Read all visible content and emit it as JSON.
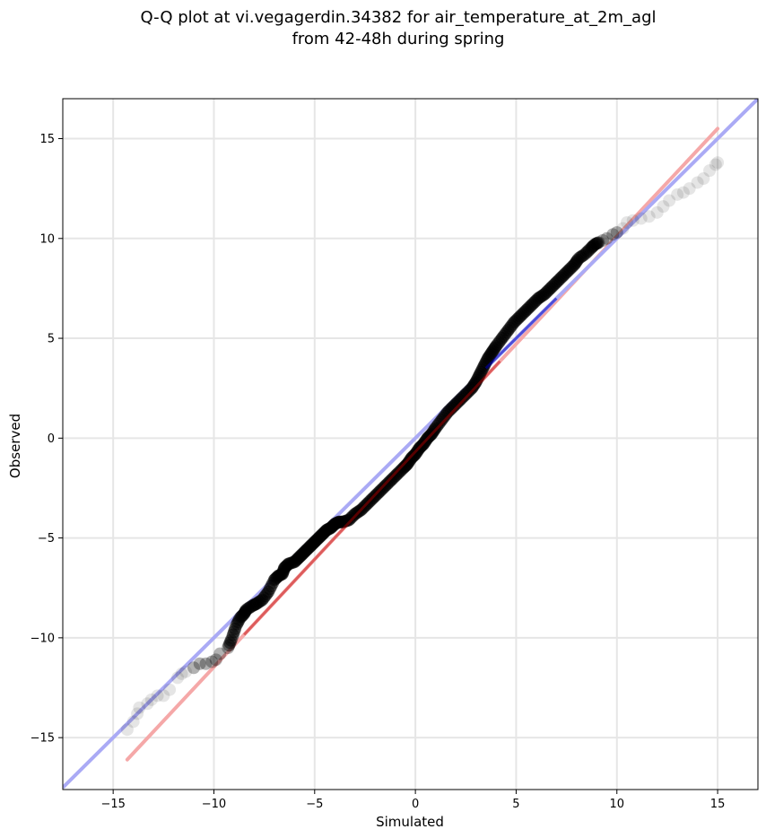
{
  "chart_data": {
    "type": "scatter",
    "title_lines": [
      "Q-Q plot at vi.vegagerdin.34382 for air_temperature_at_2m_agl",
      "from 42-48h during spring"
    ],
    "xlabel": "Simulated",
    "ylabel": "Observed",
    "xlim": [
      -17.5,
      17.0
    ],
    "ylim": [
      -17.6,
      17.0
    ],
    "xticks": [
      -15,
      -10,
      -5,
      0,
      5,
      10,
      15
    ],
    "yticks": [
      -15,
      -10,
      -5,
      0,
      5,
      10,
      15
    ],
    "xtick_labels": [
      "−15",
      "−10",
      "−5",
      "0",
      "5",
      "10",
      "15"
    ],
    "ytick_labels": [
      "−15",
      "−10",
      "−5",
      "0",
      "5",
      "10",
      "15"
    ],
    "grid": true,
    "colors": {
      "points": "#000000",
      "identity_line": "#aaaaf5",
      "fit_line": "#f5a8a8",
      "fit_inner": "#c00000",
      "inner_identity": "#0000c0",
      "grid": "#e6e6e6"
    },
    "identity_line": {
      "x": [
        -17.5,
        17.0
      ],
      "y": [
        -17.5,
        17.0
      ]
    },
    "fit_line": {
      "x": [
        -14.3,
        15.0
      ],
      "y": [
        -16.1,
        15.5
      ]
    },
    "series": [
      {
        "type": "scatter",
        "x": [
          -14.3,
          -14.0,
          -13.8,
          -13.7,
          -13.3,
          -13.1,
          -12.8,
          -12.5,
          -12.2,
          -11.8,
          -11.6,
          -11.4,
          -11.0,
          -10.7,
          -10.4,
          -10.1,
          -9.9,
          -9.7,
          -9.3,
          -9.1,
          -8.9,
          -8.7,
          -8.5,
          -8.4,
          -8.1,
          -7.9,
          -7.6,
          -7.3,
          -7.0,
          -6.8,
          -6.6,
          -6.5,
          -6.3,
          -6.0,
          -5.8,
          -5.6,
          -5.4,
          -5.2,
          -5.0,
          -4.8,
          -4.6,
          -4.4,
          -4.2,
          -4.0,
          -3.8,
          -3.6,
          -3.3,
          -3.0,
          -2.7,
          -2.4,
          -2.1,
          -1.8,
          -1.5,
          -1.2,
          -0.9,
          -0.6,
          -0.4,
          -0.2,
          0.0,
          0.2,
          0.4,
          0.6,
          0.8,
          1.0,
          1.3,
          1.6,
          1.9,
          2.2,
          2.5,
          2.8,
          3.0,
          3.2,
          3.4,
          3.6,
          3.8,
          4.0,
          4.3,
          4.6,
          4.9,
          5.2,
          5.5,
          5.8,
          6.1,
          6.4,
          6.7,
          7.0,
          7.3,
          7.6,
          7.9,
          8.1,
          8.4,
          8.7,
          8.9,
          9.1,
          9.3,
          9.5,
          9.8,
          10.0,
          10.3,
          10.5,
          10.8,
          11.2,
          11.6,
          12.0,
          12.3,
          12.6,
          13.0,
          13.3,
          13.6,
          14.0,
          14.3,
          14.6,
          14.9,
          15.0
        ],
        "y": [
          -14.6,
          -14.2,
          -13.8,
          -13.5,
          -13.3,
          -13.1,
          -12.9,
          -12.9,
          -12.6,
          -12.0,
          -11.8,
          -11.7,
          -11.5,
          -11.3,
          -11.3,
          -11.2,
          -11.1,
          -10.8,
          -10.5,
          -10.0,
          -9.4,
          -9.0,
          -8.8,
          -8.6,
          -8.4,
          -8.3,
          -8.1,
          -7.7,
          -7.1,
          -6.9,
          -6.8,
          -6.5,
          -6.3,
          -6.2,
          -6.0,
          -5.8,
          -5.6,
          -5.4,
          -5.2,
          -5.0,
          -4.8,
          -4.6,
          -4.5,
          -4.3,
          -4.2,
          -4.2,
          -4.1,
          -3.8,
          -3.6,
          -3.3,
          -3.0,
          -2.7,
          -2.4,
          -2.1,
          -1.8,
          -1.5,
          -1.3,
          -1.0,
          -0.8,
          -0.5,
          -0.3,
          0.0,
          0.2,
          0.5,
          0.9,
          1.3,
          1.6,
          1.9,
          2.2,
          2.5,
          2.8,
          3.2,
          3.6,
          4.0,
          4.3,
          4.6,
          5.0,
          5.4,
          5.8,
          6.1,
          6.4,
          6.7,
          7.0,
          7.2,
          7.5,
          7.8,
          8.1,
          8.4,
          8.7,
          9.0,
          9.2,
          9.5,
          9.7,
          9.8,
          9.9,
          10.0,
          10.2,
          10.3,
          10.5,
          10.8,
          10.9,
          11.0,
          11.1,
          11.3,
          11.6,
          11.9,
          12.2,
          12.3,
          12.5,
          12.8,
          13.0,
          13.4,
          13.7,
          13.8
        ]
      }
    ]
  }
}
